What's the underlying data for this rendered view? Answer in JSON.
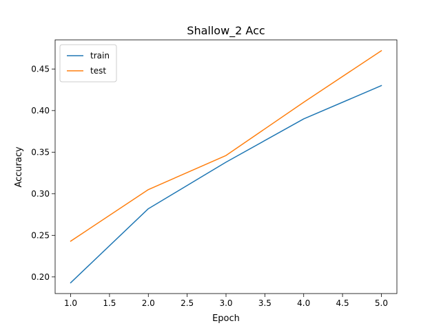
{
  "chart_data": {
    "type": "line",
    "title": "Shallow_2 Acc",
    "xlabel": "Epoch",
    "ylabel": "Accuracy",
    "xlim": [
      0.8,
      5.2
    ],
    "ylim": [
      0.18,
      0.485
    ],
    "x": [
      1.0,
      2.0,
      3.0,
      4.0,
      5.0
    ],
    "xticks": [
      "1.0",
      "1.5",
      "2.0",
      "2.5",
      "3.0",
      "3.5",
      "4.0",
      "4.5",
      "5.0"
    ],
    "yticks": [
      "0.20",
      "0.25",
      "0.30",
      "0.35",
      "0.40",
      "0.45"
    ],
    "grid": false,
    "legend_position": "top-left",
    "series": [
      {
        "name": "train",
        "color": "#1f77b4",
        "values": [
          0.193,
          0.282,
          0.338,
          0.39,
          0.43
        ]
      },
      {
        "name": "test",
        "color": "#ff7f0e",
        "values": [
          0.243,
          0.305,
          0.346,
          0.41,
          0.472
        ]
      }
    ]
  }
}
